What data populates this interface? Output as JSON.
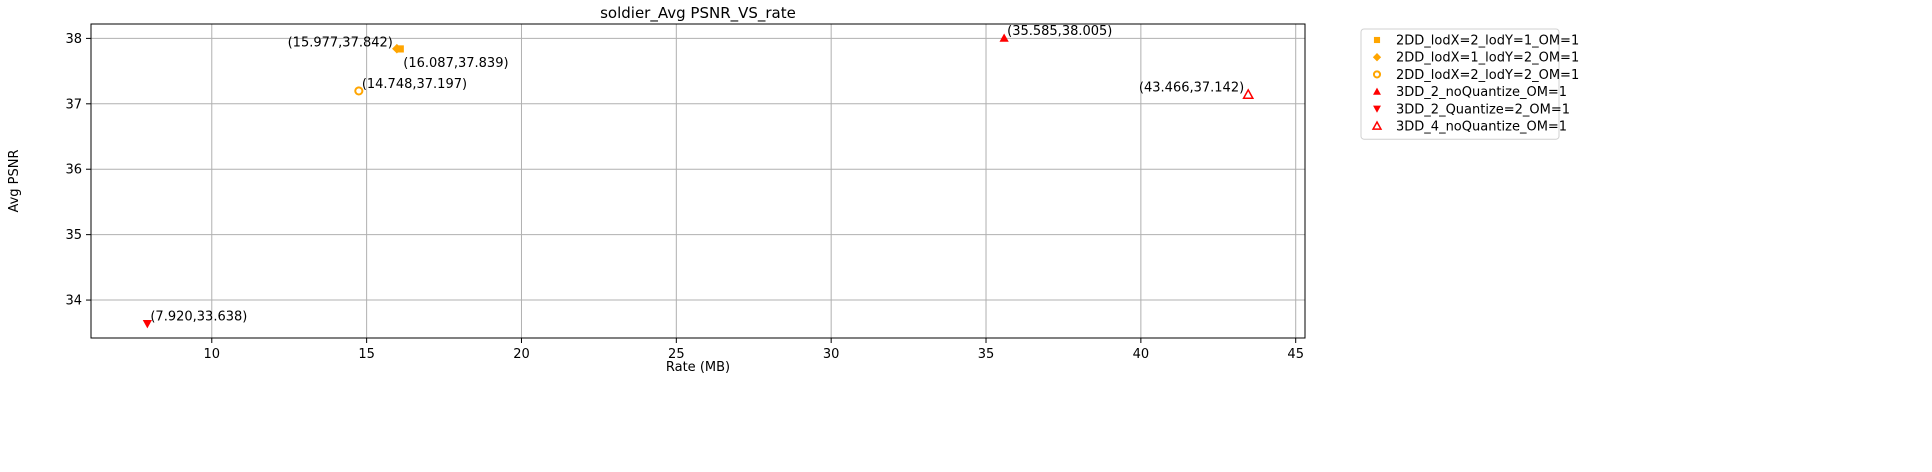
{
  "chart_data": {
    "type": "scatter",
    "title": "soldier_Avg PSNR_VS_rate",
    "xlabel": "Rate (MB)",
    "ylabel": "Avg PSNR",
    "xlim": [
      6.1,
      45.3
    ],
    "ylim": [
      33.42,
      38.22
    ],
    "x_ticks": [
      10,
      15,
      20,
      25,
      30,
      35,
      40,
      45
    ],
    "y_ticks": [
      34,
      35,
      36,
      37,
      38
    ],
    "grid": true,
    "legend_position": "outside-top-right",
    "series": [
      {
        "name": "2DD_lodX=2_lodY=1_OM=1",
        "marker": "square",
        "color": "#ffa500",
        "filled": true,
        "points": [
          {
            "x": 16.087,
            "y": 37.839,
            "label": "(16.087,37.839)"
          }
        ]
      },
      {
        "name": "2DD_lodX=1_lodY=2_OM=1",
        "marker": "diamond",
        "color": "#ffa500",
        "filled": true,
        "points": [
          {
            "x": 15.977,
            "y": 37.842,
            "label": "(15.977,37.842)"
          }
        ]
      },
      {
        "name": "2DD_lodX=2_lodY=2_OM=1",
        "marker": "circle",
        "color": "#ffa500",
        "filled": false,
        "points": [
          {
            "x": 14.748,
            "y": 37.197,
            "label": "(14.748,37.197)"
          }
        ]
      },
      {
        "name": "3DD_2_noQuantize_OM=1",
        "marker": "triangle-up",
        "color": "#ff0000",
        "filled": true,
        "points": [
          {
            "x": 35.585,
            "y": 38.005,
            "label": "(35.585,38.005)"
          }
        ]
      },
      {
        "name": "3DD_2_Quantize=2_OM=1",
        "marker": "triangle-down",
        "color": "#ff0000",
        "filled": true,
        "points": [
          {
            "x": 7.92,
            "y": 33.638,
            "label": "(7.920,33.638)"
          }
        ]
      },
      {
        "name": "3DD_4_noQuantize_OM=1",
        "marker": "triangle-up",
        "color": "#ff0000",
        "filled": false,
        "points": [
          {
            "x": 43.466,
            "y": 37.142,
            "label": "(43.466,37.142)"
          }
        ]
      }
    ]
  }
}
